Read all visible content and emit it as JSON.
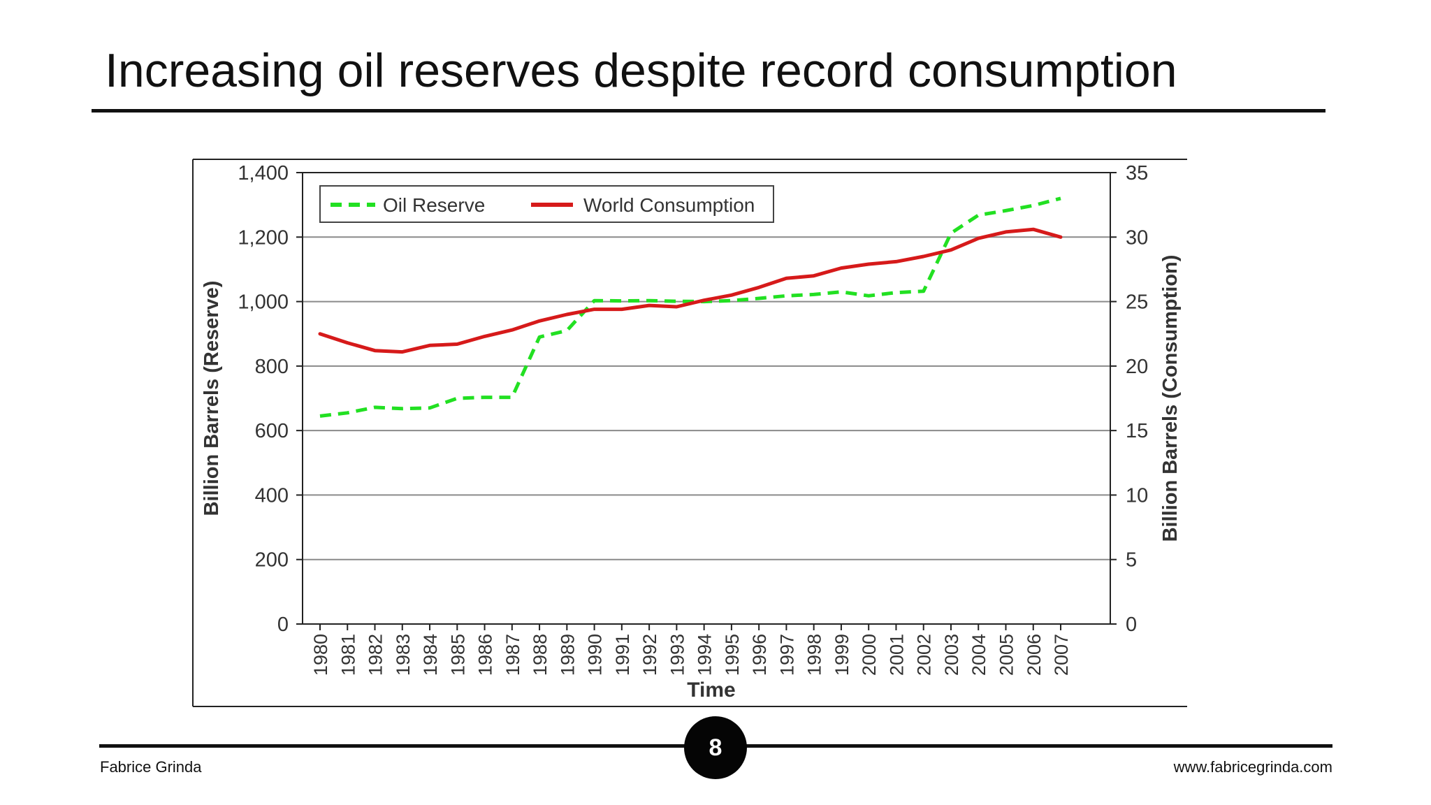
{
  "slide": {
    "title": "Increasing oil reserves despite record consumption",
    "page_number": "8",
    "footer_left": "Fabrice Grinda",
    "footer_right": "www.fabricegrinda.com"
  },
  "colors": {
    "oil_reserve": "#22e022",
    "world_consumption": "#d61a1a",
    "grid": "#8a8a8a",
    "frame": "#222222"
  },
  "chart_data": {
    "type": "line",
    "xlabel": "Time",
    "ylabel_left": "Billion Barrels (Reserve)",
    "ylabel_right": "Billion Barrels (Consumption)",
    "ylim_left": [
      0,
      1400
    ],
    "ylim_right": [
      0,
      35
    ],
    "yticks_left": [
      "0",
      "200",
      "400",
      "600",
      "800",
      "1,000",
      "1,200",
      "1,400"
    ],
    "yticks_right": [
      "0",
      "5",
      "10",
      "15",
      "20",
      "25",
      "30",
      "35"
    ],
    "grid": true,
    "legend_position": "top-left",
    "x": [
      "1980",
      "1981",
      "1982",
      "1983",
      "1984",
      "1985",
      "1986",
      "1987",
      "1988",
      "1989",
      "1990",
      "1991",
      "1992",
      "1993",
      "1994",
      "1995",
      "1996",
      "1997",
      "1998",
      "1999",
      "2000",
      "2001",
      "2002",
      "2003",
      "2004",
      "2005",
      "2006",
      "2007"
    ],
    "series": [
      {
        "name": "Oil Reserve",
        "axis": "left",
        "style": "dashed",
        "values": [
          645,
          655,
          672,
          668,
          670,
          700,
          703,
          703,
          890,
          910,
          1003,
          1002,
          1003,
          1001,
          1000,
          1003,
          1010,
          1018,
          1022,
          1030,
          1018,
          1028,
          1032,
          1212,
          1268,
          1282,
          1298,
          1320
        ]
      },
      {
        "name": "World Consumption",
        "axis": "right",
        "style": "solid",
        "values": [
          22.5,
          21.8,
          21.2,
          21.1,
          21.6,
          21.7,
          22.3,
          22.8,
          23.5,
          24.0,
          24.4,
          24.4,
          24.7,
          24.6,
          25.1,
          25.5,
          26.1,
          26.8,
          27.0,
          27.6,
          27.9,
          28.1,
          28.5,
          29.0,
          29.9,
          30.4,
          30.6,
          30.0
        ]
      }
    ]
  }
}
